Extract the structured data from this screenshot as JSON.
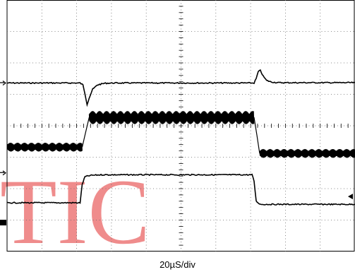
{
  "chart_data": {
    "type": "line",
    "title": "",
    "xlabel": "20µS/div",
    "ylabel": "",
    "x_units": "divisions",
    "y_units": "divisions",
    "xlim": [
      0,
      10
    ],
    "ylim": [
      -4,
      4
    ],
    "divisions": {
      "x": 10,
      "y": 8,
      "minor_per_division": 5
    },
    "grid": true,
    "series": [
      {
        "name": "",
        "style": "trace",
        "color": "#000000",
        "ground_marker_y": 1.36,
        "points": [
          [
            0.0,
            1.36
          ],
          [
            2.1,
            1.36
          ],
          [
            2.18,
            1.3
          ],
          [
            2.24,
            1.02
          ],
          [
            2.3,
            0.68
          ],
          [
            2.36,
            0.88
          ],
          [
            2.46,
            1.16
          ],
          [
            2.6,
            1.3
          ],
          [
            2.8,
            1.35
          ],
          [
            3.1,
            1.36
          ],
          [
            7.1,
            1.36
          ],
          [
            7.16,
            1.5
          ],
          [
            7.22,
            1.72
          ],
          [
            7.28,
            1.76
          ],
          [
            7.36,
            1.58
          ],
          [
            7.46,
            1.44
          ],
          [
            7.6,
            1.39
          ],
          [
            7.8,
            1.37
          ],
          [
            10.0,
            1.37
          ]
        ]
      },
      {
        "name": "",
        "style": "ripple",
        "color": "#000000",
        "ground_marker_y": -1.5,
        "segments": [
          {
            "x0": 0.0,
            "x1": 2.16,
            "center": -0.68,
            "amplitude": 0.14,
            "period": 0.2
          },
          {
            "x0": 2.36,
            "x1": 7.1,
            "center": 0.26,
            "amplitude": 0.21,
            "period": 0.2
          },
          {
            "x0": 7.26,
            "x1": 10.0,
            "center": -0.88,
            "amplitude": 0.14,
            "period": 0.2
          }
        ],
        "points": [
          [
            2.16,
            -0.68
          ],
          [
            2.24,
            -0.3
          ],
          [
            2.36,
            0.26
          ],
          [
            7.1,
            0.26
          ],
          [
            7.18,
            -0.3
          ],
          [
            7.26,
            -0.88
          ]
        ]
      },
      {
        "name": "",
        "style": "trace",
        "color": "#000000",
        "ground_marker_y": -3.08,
        "points": [
          [
            0.0,
            -2.45
          ],
          [
            2.1,
            -2.45
          ],
          [
            2.16,
            -1.86
          ],
          [
            2.24,
            -1.62
          ],
          [
            2.4,
            -1.58
          ],
          [
            2.7,
            -1.56
          ],
          [
            7.04,
            -1.56
          ],
          [
            7.1,
            -1.76
          ],
          [
            7.16,
            -2.4
          ],
          [
            7.28,
            -2.5
          ],
          [
            10.0,
            -2.5
          ]
        ]
      }
    ],
    "trigger_marker_y": -2.25
  }
}
